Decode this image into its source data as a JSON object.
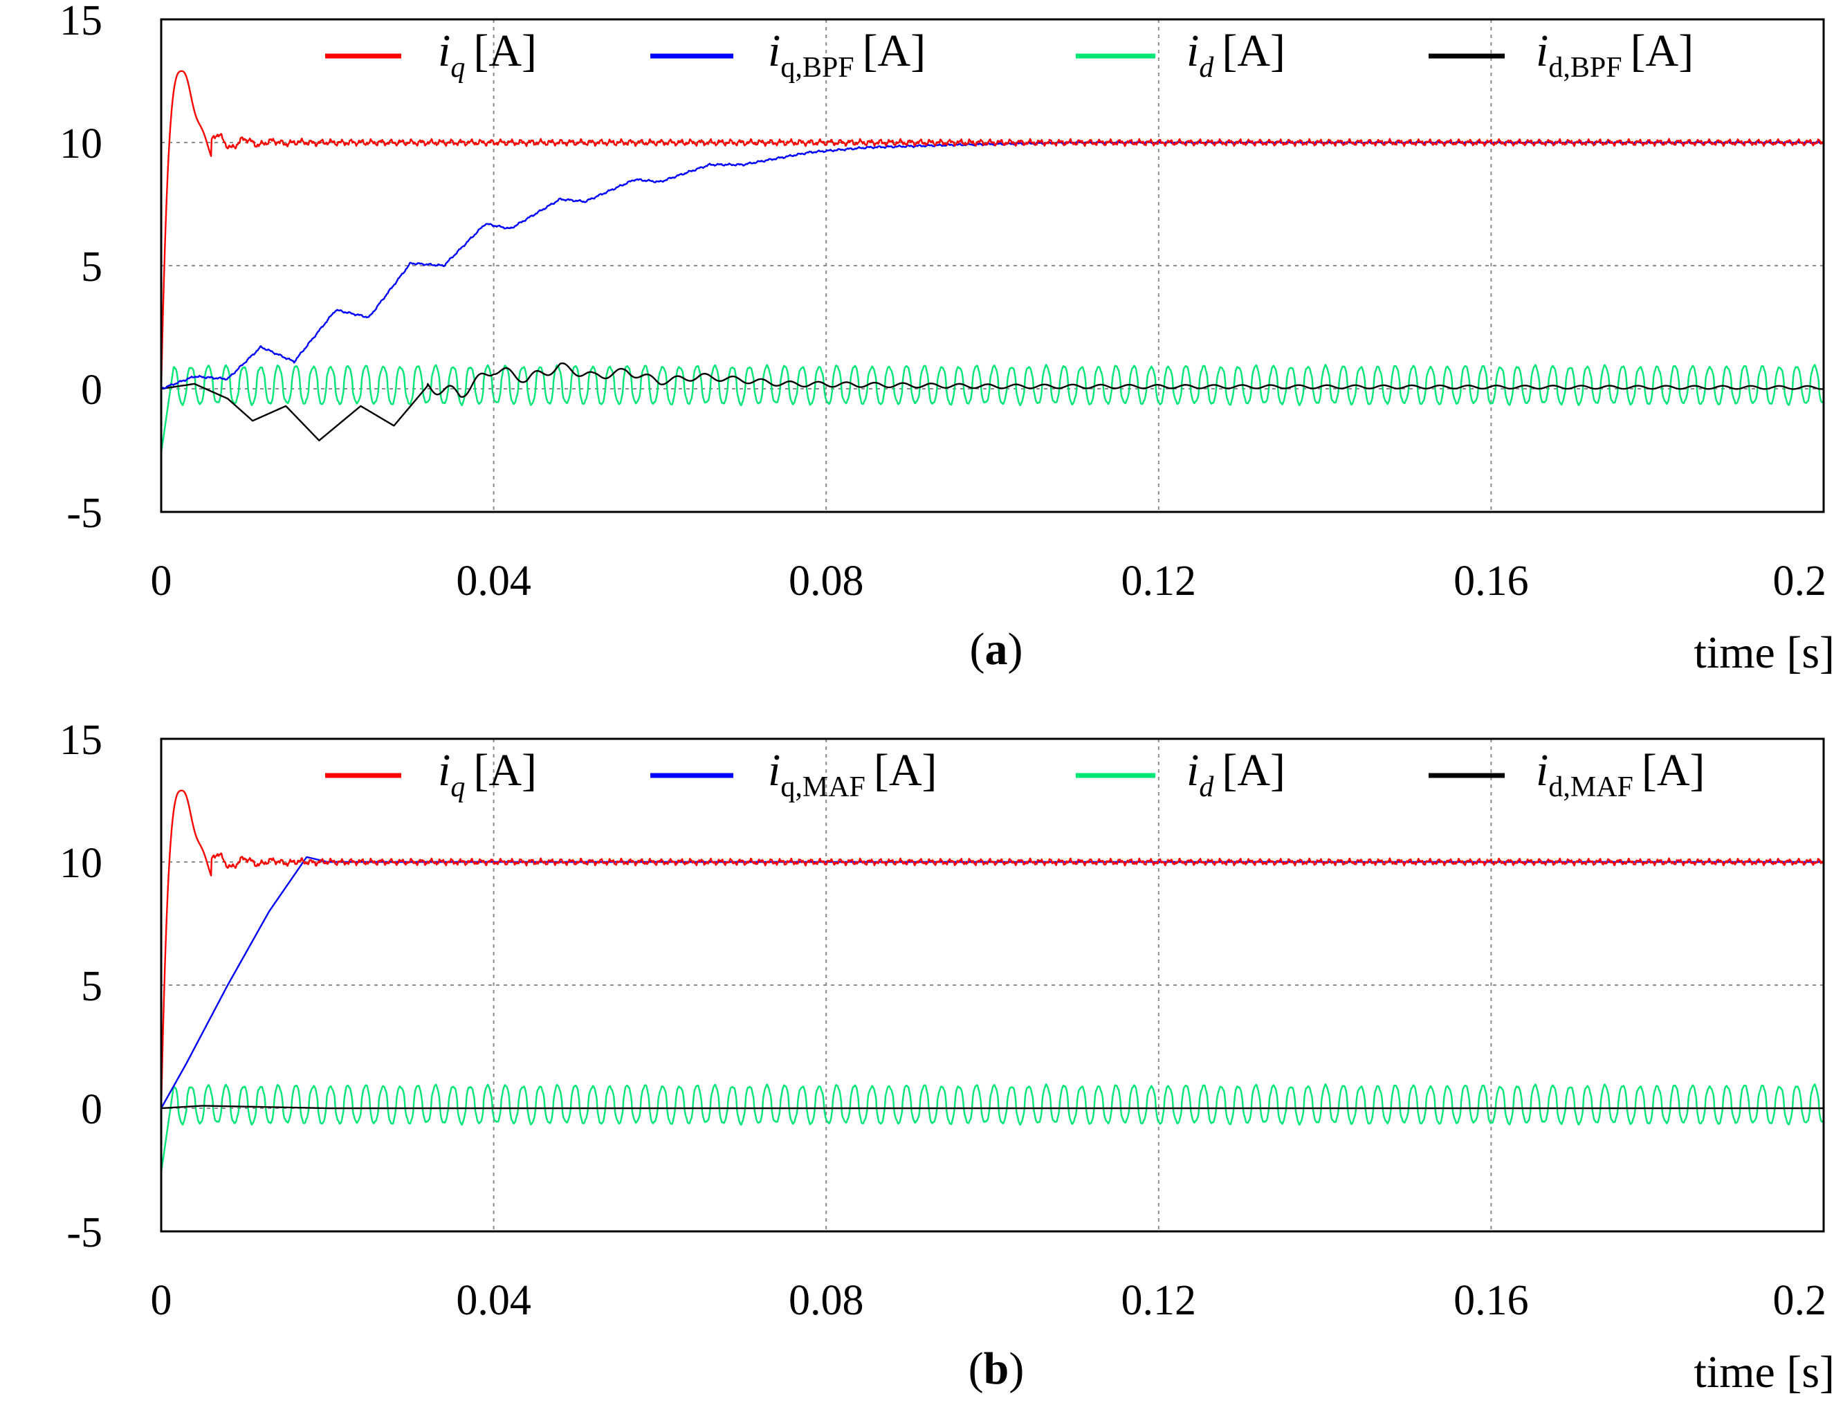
{
  "chart_data": [
    {
      "type": "line",
      "panel_label": "a",
      "xlabel": "time [s]",
      "ylabel": "",
      "xlim": [
        0,
        0.2
      ],
      "ylim": [
        -5,
        15
      ],
      "xticks": [
        "0",
        "0.04",
        "0.08",
        "0.12",
        "0.16",
        "0.2"
      ],
      "yticks": [
        "-5",
        "0",
        "5",
        "10",
        "15"
      ],
      "grid": true,
      "legend_position": "top",
      "series": [
        {
          "name": "i_q [A]",
          "legend_main": "i",
          "legend_sub": "q",
          "legend_unit": "[A]",
          "color": "#ff0000",
          "model": "iq",
          "steady_value": 10,
          "peak_value": 12.9,
          "peak_time": 0.0025,
          "settling_time": 0.006,
          "ripple_amplitude": 0.15
        },
        {
          "name": "i_q,BPF [A]",
          "legend_main": "i",
          "legend_sub": "q,BPF",
          "legend_unit": "[A]",
          "color": "#0000ff",
          "model": "bpf_q",
          "points": [
            [
              0,
              0
            ],
            [
              0.004,
              0.5
            ],
            [
              0.008,
              0.4
            ],
            [
              0.012,
              1.7
            ],
            [
              0.016,
              1.1
            ],
            [
              0.021,
              3.2
            ],
            [
              0.025,
              2.9
            ],
            [
              0.03,
              5.1
            ],
            [
              0.034,
              5.0
            ],
            [
              0.039,
              6.7
            ],
            [
              0.042,
              6.5
            ],
            [
              0.048,
              7.7
            ],
            [
              0.051,
              7.6
            ],
            [
              0.057,
              8.5
            ],
            [
              0.06,
              8.4
            ],
            [
              0.066,
              9.1
            ],
            [
              0.07,
              9.1
            ],
            [
              0.078,
              9.6
            ],
            [
              0.085,
              9.8
            ],
            [
              0.095,
              9.9
            ],
            [
              0.11,
              10.0
            ],
            [
              0.2,
              10.0
            ]
          ]
        },
        {
          "name": "i_d [A]",
          "legend_main": "i",
          "legend_sub": "d",
          "legend_unit": "[A]",
          "color": "#00e676",
          "model": "id",
          "initial_value": -2.6,
          "ripple_max": 0.9,
          "ripple_min": -0.6,
          "ripple_period": 0.0021
        },
        {
          "name": "i_d,BPF [A]",
          "legend_main": "i",
          "legend_sub": "d,BPF",
          "legend_unit": "[A]",
          "color": "#000000",
          "model": "bpf_d",
          "points": [
            [
              0,
              0
            ],
            [
              0.004,
              0.2
            ],
            [
              0.008,
              -0.4
            ],
            [
              0.011,
              -1.3
            ],
            [
              0.015,
              -0.7
            ],
            [
              0.019,
              -2.1
            ],
            [
              0.024,
              -0.7
            ],
            [
              0.028,
              -1.5
            ],
            [
              0.032,
              0.1
            ],
            [
              0.036,
              -0.2
            ],
            [
              0.04,
              0.8
            ],
            [
              0.044,
              0.4
            ],
            [
              0.048,
              0.9
            ],
            [
              0.052,
              0.5
            ],
            [
              0.056,
              0.7
            ],
            [
              0.06,
              0.3
            ],
            [
              0.065,
              0.5
            ],
            [
              0.075,
              0.2
            ],
            [
              0.1,
              0.1
            ],
            [
              0.2,
              0.05
            ]
          ],
          "ripple_amplitude": 0.25
        }
      ]
    },
    {
      "type": "line",
      "panel_label": "b",
      "xlabel": "time [s]",
      "ylabel": "",
      "xlim": [
        0,
        0.2
      ],
      "ylim": [
        -5,
        15
      ],
      "xticks": [
        "0",
        "0.04",
        "0.08",
        "0.12",
        "0.16",
        "0.2"
      ],
      "yticks": [
        "-5",
        "0",
        "5",
        "10",
        "15"
      ],
      "grid": true,
      "legend_position": "top",
      "series": [
        {
          "name": "i_q [A]",
          "legend_main": "i",
          "legend_sub": "q",
          "legend_unit": "[A]",
          "color": "#ff0000",
          "model": "iq",
          "steady_value": 10,
          "peak_value": 12.9,
          "peak_time": 0.0025,
          "settling_time": 0.006,
          "ripple_amplitude": 0.15
        },
        {
          "name": "i_q,MAF [A]",
          "legend_main": "i",
          "legend_sub": "q,MAF",
          "legend_unit": "[A]",
          "color": "#0000ff",
          "model": "points",
          "points": [
            [
              0,
              0
            ],
            [
              0.003,
              1.8
            ],
            [
              0.008,
              5.0
            ],
            [
              0.013,
              8.0
            ],
            [
              0.0175,
              10.2
            ],
            [
              0.02,
              10.0
            ],
            [
              0.2,
              10.0
            ]
          ]
        },
        {
          "name": "i_d [A]",
          "legend_main": "i",
          "legend_sub": "d",
          "legend_unit": "[A]",
          "color": "#00e676",
          "model": "id",
          "initial_value": -2.6,
          "ripple_max": 0.9,
          "ripple_min": -0.6,
          "ripple_period": 0.0021
        },
        {
          "name": "i_d,MAF [A]",
          "legend_main": "i",
          "legend_sub": "d,MAF",
          "legend_unit": "[A]",
          "color": "#000000",
          "model": "points",
          "points": [
            [
              0,
              0
            ],
            [
              0.005,
              0.1
            ],
            [
              0.02,
              0.0
            ],
            [
              0.2,
              0.0
            ]
          ]
        }
      ]
    }
  ]
}
